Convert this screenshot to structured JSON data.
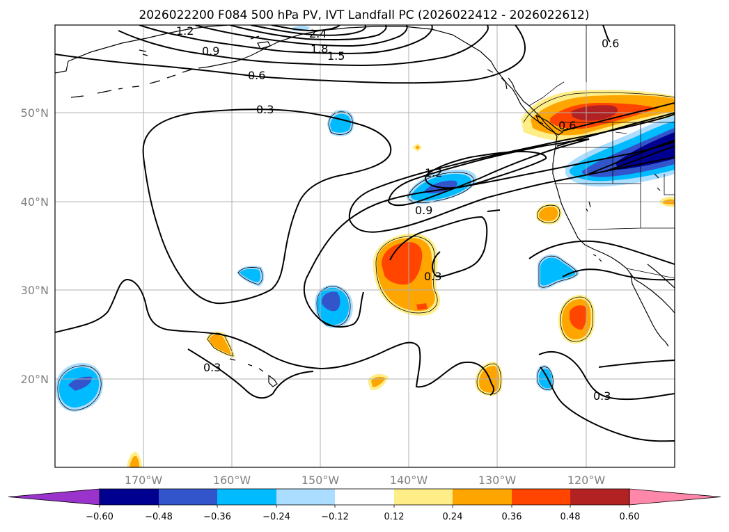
{
  "title": "2026022200 F084 500 hPa PV, IVT Landfall PC (2026022412 - 2026022612)",
  "map": {
    "lat_labels": [
      "50°N",
      "40°N",
      "30°N",
      "20°N"
    ],
    "lon_labels": [
      "170°W",
      "160°W",
      "150°W",
      "140°W",
      "130°W",
      "120°W"
    ],
    "lon_range": [
      -180,
      -110
    ],
    "lat_range": [
      10,
      60
    ]
  },
  "contour_labels": [
    {
      "id": "c12a",
      "text": "1.2"
    },
    {
      "id": "c24",
      "text": "2.4"
    },
    {
      "id": "c18",
      "text": "1.8"
    },
    {
      "id": "c15",
      "text": "1.5"
    },
    {
      "id": "c09a",
      "text": "0.9"
    },
    {
      "id": "c06a",
      "text": "0.6"
    },
    {
      "id": "c06b",
      "text": "0.6"
    },
    {
      "id": "c03a",
      "text": "0.3"
    },
    {
      "id": "c12b",
      "text": "1.2"
    },
    {
      "id": "c09b",
      "text": "0.9"
    },
    {
      "id": "c03b",
      "text": "0.3"
    },
    {
      "id": "c03c",
      "text": "0.3"
    },
    {
      "id": "c03d",
      "text": "0.3"
    },
    {
      "id": "c06c",
      "text": "0.6"
    }
  ],
  "colorbar": {
    "colors": [
      "#9933cc",
      "#000090",
      "#3355cc",
      "#00bbff",
      "#aaddff",
      "#ffffff",
      "#ffee88",
      "#ffa500",
      "#ff4500",
      "#b22222",
      "#ff88aa"
    ],
    "tick_labels": [
      "−0.60",
      "−0.48",
      "−0.36",
      "−0.24",
      "−0.12",
      "0.12",
      "0.24",
      "0.36",
      "0.48",
      "0.60"
    ]
  }
}
